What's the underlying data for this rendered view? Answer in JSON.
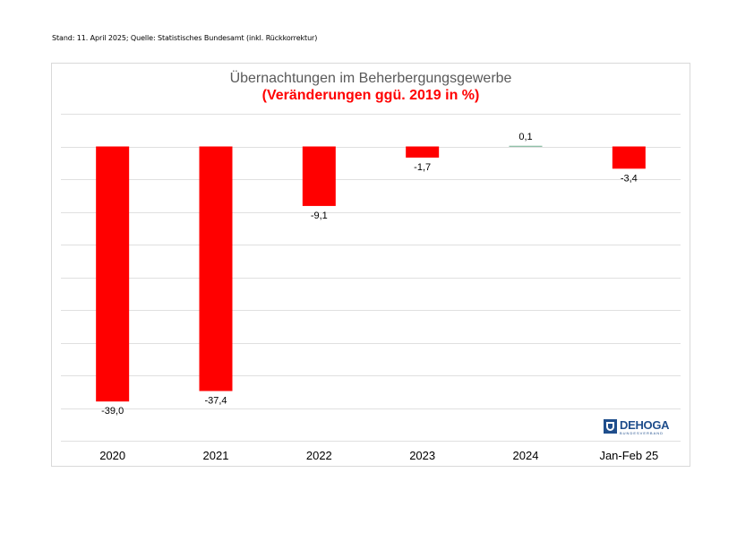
{
  "source_note": "Stand: 11. April 2025; Quelle: Statistisches Bundesamt (inkl. Rückkorrektur)",
  "logo": {
    "text": "DEHOGA",
    "subtext": "BUNDESVERBAND"
  },
  "colors": {
    "bar": "#ff0000",
    "positive_bar": "#70ad8f",
    "grid": "#e0e0e0",
    "title": "#595959",
    "subtitle": "#ff0000"
  },
  "chart_data": {
    "type": "bar",
    "title": "Übernachtungen im Beherbergungsgewerbe",
    "subtitle": "(Veränderungen ggü. 2019 in %)",
    "categories": [
      "2020",
      "2021",
      "2022",
      "2023",
      "2024",
      "Jan-Feb 25"
    ],
    "values": [
      -39.0,
      -37.4,
      -9.1,
      -1.7,
      0.1,
      -3.4
    ],
    "value_labels": [
      "-39,0",
      "-37,4",
      "-9,1",
      "-1,7",
      "0,1",
      "-3,4"
    ],
    "xlabel": "",
    "ylabel": "",
    "ylim": [
      -45,
      5
    ],
    "gridlines": [
      5,
      0,
      -5,
      -10,
      -15,
      -20,
      -25,
      -30,
      -35,
      -40,
      -45
    ],
    "grid": true,
    "legend": "none"
  }
}
